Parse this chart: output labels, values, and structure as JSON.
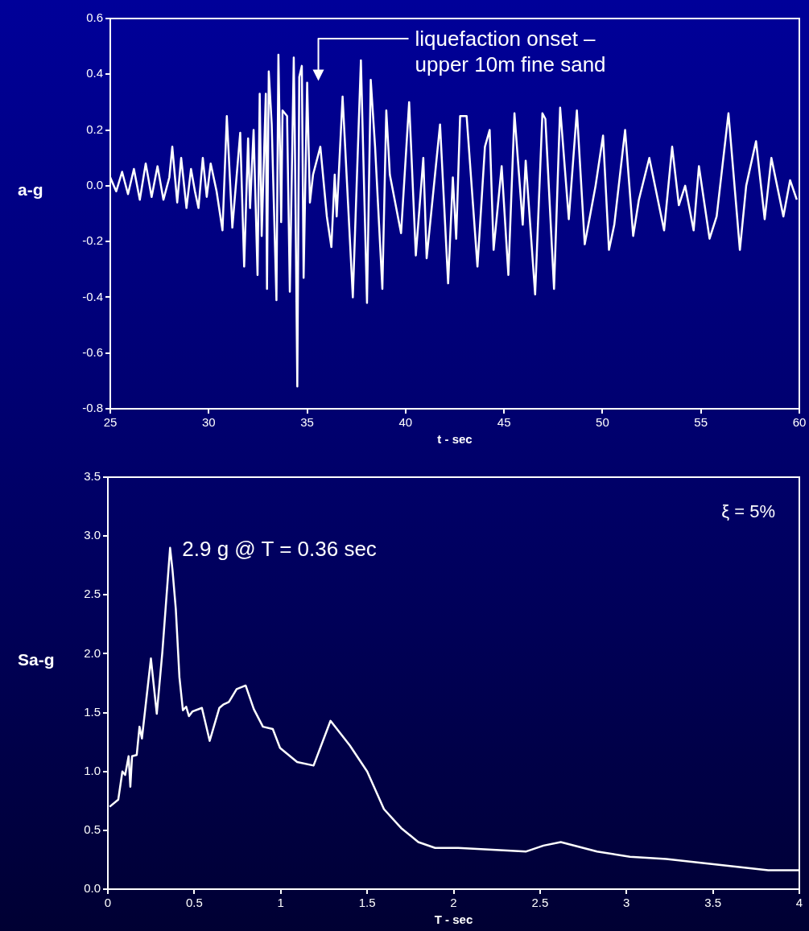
{
  "chart_data": [
    {
      "type": "line",
      "ylabel": "a-g",
      "xlabel": "t - sec",
      "color": "#ffffff",
      "marker": "none",
      "line_style": "solid",
      "legend": false,
      "grid": false,
      "annotations": [
        "liquefaction onset – upper 10m fine sand"
      ],
      "xlim": [
        25,
        60
      ],
      "xticks": [
        25,
        30,
        35,
        40,
        45,
        50,
        55,
        60
      ],
      "ylim": [
        -0.8,
        0.6
      ],
      "yticks": [
        -0.8,
        -0.6,
        -0.4,
        -0.2,
        {
          "value": 0,
          "label": "0.0"
        },
        0.2,
        0.4,
        0.6
      ],
      "x": [
        25.0,
        25.3,
        25.6,
        25.9,
        26.2,
        26.5,
        26.8,
        27.1,
        27.4,
        27.7,
        28.0,
        28.15,
        28.4,
        28.6,
        28.87,
        29.1,
        29.3,
        29.48,
        29.7,
        29.9,
        30.1,
        30.4,
        30.7,
        30.92,
        31.2,
        31.6,
        31.8,
        32.0,
        32.1,
        32.28,
        32.48,
        32.59,
        32.69,
        32.9,
        32.96,
        33.05,
        33.2,
        33.44,
        33.54,
        33.68,
        33.75,
        33.98,
        34.12,
        34.32,
        34.37,
        34.5,
        34.6,
        34.73,
        34.82,
        35.0,
        35.14,
        35.3,
        35.67,
        36.0,
        36.23,
        36.4,
        36.5,
        36.8,
        37.32,
        37.73,
        38.04,
        38.23,
        38.45,
        38.82,
        39.02,
        39.2,
        39.77,
        40.18,
        40.52,
        40.9,
        41.07,
        41.75,
        42.16,
        42.4,
        42.57,
        42.77,
        43.1,
        43.65,
        44.03,
        44.27,
        44.47,
        44.88,
        45.22,
        45.53,
        45.95,
        46.1,
        46.58,
        46.95,
        47.1,
        47.54,
        47.85,
        48.29,
        48.7,
        49.1,
        49.65,
        50.03,
        50.33,
        50.6,
        51.15,
        51.56,
        51.85,
        52.38,
        53.13,
        53.54,
        53.88,
        54.2,
        54.63,
        54.9,
        55.44,
        55.8,
        56.4,
        56.98,
        57.3,
        57.8,
        58.24,
        58.58,
        59.19,
        59.53,
        59.87
      ],
      "values": [
        0.03,
        -0.02,
        0.05,
        -0.03,
        0.06,
        -0.05,
        0.08,
        -0.04,
        0.07,
        -0.05,
        0.03,
        0.14,
        -0.06,
        0.1,
        -0.08,
        0.06,
        -0.02,
        -0.08,
        0.1,
        -0.04,
        0.08,
        -0.02,
        -0.16,
        0.25,
        -0.15,
        0.19,
        -0.29,
        0.17,
        -0.08,
        0.2,
        -0.32,
        0.33,
        -0.18,
        0.33,
        -0.37,
        0.41,
        0.22,
        -0.41,
        0.47,
        -0.13,
        0.27,
        0.25,
        -0.38,
        0.46,
        0.2,
        -0.72,
        0.39,
        0.43,
        -0.33,
        0.37,
        -0.06,
        0.04,
        0.14,
        -0.11,
        -0.22,
        0.04,
        -0.11,
        0.32,
        -0.4,
        0.45,
        -0.42,
        0.38,
        0.14,
        -0.37,
        0.27,
        0.04,
        -0.17,
        0.3,
        -0.25,
        0.1,
        -0.26,
        0.22,
        -0.35,
        0.03,
        -0.19,
        0.25,
        0.25,
        -0.29,
        0.14,
        0.2,
        -0.23,
        0.07,
        -0.32,
        0.26,
        -0.14,
        0.09,
        -0.39,
        0.26,
        0.24,
        -0.37,
        0.28,
        -0.12,
        0.27,
        -0.21,
        0.0,
        0.18,
        -0.23,
        -0.14,
        0.2,
        -0.18,
        -0.05,
        0.1,
        -0.16,
        0.14,
        -0.07,
        0.0,
        -0.16,
        0.07,
        -0.19,
        -0.11,
        0.26,
        -0.23,
        0.0,
        0.16,
        -0.12,
        0.1,
        -0.11,
        0.02,
        -0.05
      ]
    },
    {
      "type": "line",
      "ylabel": "Sa-g",
      "xlabel": "T - sec",
      "color": "#ffffff",
      "marker": "none",
      "line_style": "solid",
      "legend": false,
      "grid": false,
      "annotations": [
        {
          "text": "2.9 g @ T = 0.36 sec",
          "x": 0.36,
          "y": 2.9
        },
        "ξ = 5%"
      ],
      "xlim": [
        0,
        4
      ],
      "xticks": [
        0,
        0.5,
        1,
        1.5,
        2,
        2.5,
        3,
        3.5,
        4
      ],
      "ylim": [
        0,
        3.5
      ],
      "yticks": [
        {
          "value": 0,
          "label": "0.0"
        },
        0.5,
        {
          "value": 1,
          "label": "1.0"
        },
        1.5,
        {
          "value": 2,
          "label": "2.0"
        },
        2.5,
        {
          "value": 3,
          "label": "3.0"
        },
        3.5
      ],
      "x": [
        0.01,
        0.06,
        0.07,
        0.084,
        0.1,
        0.12,
        0.13,
        0.14,
        0.167,
        0.183,
        0.197,
        0.249,
        0.283,
        0.315,
        0.36,
        0.374,
        0.393,
        0.414,
        0.434,
        0.453,
        0.469,
        0.49,
        0.544,
        0.589,
        0.645,
        0.67,
        0.7,
        0.745,
        0.797,
        0.844,
        0.897,
        0.954,
        0.996,
        1.095,
        1.19,
        1.288,
        1.4,
        1.5,
        1.597,
        1.696,
        1.796,
        1.893,
        2.027,
        2.42,
        2.52,
        2.62,
        2.83,
        3.02,
        3.23,
        3.82,
        4.0
      ],
      "values": [
        0.7,
        0.76,
        0.86,
        1.0,
        0.97,
        1.13,
        0.87,
        1.13,
        1.14,
        1.38,
        1.28,
        1.96,
        1.49,
        2.01,
        2.9,
        2.71,
        2.38,
        1.8,
        1.52,
        1.55,
        1.47,
        1.51,
        1.54,
        1.26,
        1.54,
        1.57,
        1.59,
        1.7,
        1.73,
        1.53,
        1.38,
        1.36,
        1.2,
        1.08,
        1.05,
        1.43,
        1.22,
        1.0,
        0.68,
        0.52,
        0.4,
        0.35,
        0.35,
        0.32,
        0.37,
        0.4,
        0.32,
        0.275,
        0.256,
        0.16,
        0.16
      ]
    }
  ]
}
